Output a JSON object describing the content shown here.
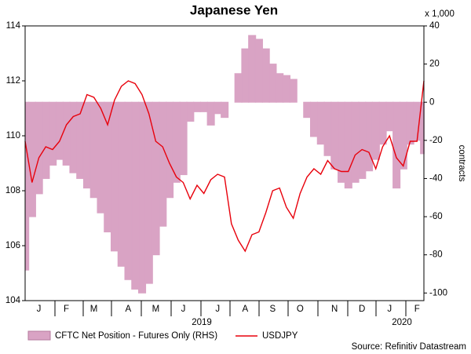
{
  "chart_data": {
    "type": "combo",
    "title": "Japanese Yen",
    "categories": [
      null,
      null,
      "J",
      null,
      null,
      null,
      "F",
      null,
      null,
      null,
      "M",
      null,
      null,
      null,
      null,
      "A",
      null,
      null,
      null,
      "M",
      null,
      null,
      null,
      "J",
      null,
      null,
      null,
      null,
      "J",
      null,
      null,
      null,
      "A",
      null,
      null,
      null,
      "S",
      null,
      null,
      null,
      "O",
      null,
      null,
      null,
      null,
      "N",
      null,
      null,
      null,
      "D",
      null,
      null,
      null,
      "J",
      null,
      null,
      null,
      "F",
      null
    ],
    "years": [
      "2019",
      "2020"
    ],
    "series": [
      {
        "name": "CFTC Net Position - Futures Only (RHS)",
        "type": "area",
        "axis": "y2",
        "color": "#d9a3c4",
        "values": [
          -88,
          -60,
          -48,
          -40,
          -33,
          -30,
          -33,
          -37,
          -40,
          -45,
          -50,
          -58,
          -68,
          -78,
          -86,
          -93,
          -98,
          -100,
          -95,
          -80,
          -65,
          -50,
          -42,
          -38,
          -10,
          -5,
          -5,
          -12,
          -6,
          -8,
          0,
          15,
          28,
          35,
          33,
          28,
          20,
          15,
          14,
          12,
          0,
          -8,
          -18,
          -22,
          -28,
          -35,
          -42,
          -45,
          -42,
          -40,
          -36,
          -30,
          -22,
          -15,
          -45,
          -35,
          -22,
          -20,
          -27
        ]
      },
      {
        "name": "USDJPY",
        "type": "line",
        "axis": "y",
        "color": "#e8000b",
        "values": [
          109.8,
          108.3,
          109.2,
          109.6,
          109.5,
          109.8,
          110.4,
          110.7,
          110.8,
          111.5,
          111.4,
          111.0,
          110.4,
          111.3,
          111.8,
          112.0,
          111.9,
          111.5,
          110.8,
          109.8,
          109.6,
          109.0,
          108.5,
          108.3,
          107.7,
          108.2,
          107.9,
          108.4,
          108.6,
          108.5,
          106.8,
          106.2,
          105.8,
          106.4,
          106.5,
          107.2,
          108.0,
          108.1,
          107.4,
          107.0,
          107.9,
          108.5,
          108.8,
          108.6,
          109.1,
          108.8,
          108.7,
          108.7,
          109.3,
          109.5,
          109.4,
          108.8,
          109.6,
          110.0,
          109.2,
          108.9,
          109.8,
          109.8,
          112.0
        ]
      }
    ],
    "ylim": [
      104,
      114
    ],
    "yticks": [
      104,
      106,
      108,
      110,
      112,
      114
    ],
    "y2lim": [
      -104,
      40
    ],
    "y2ticks": [
      -100,
      -80,
      -60,
      -40,
      -20,
      0,
      20,
      40
    ],
    "y2_unit": "x 1,000",
    "y2label": "contracts",
    "source": "Source: Refinitiv Datastream"
  }
}
